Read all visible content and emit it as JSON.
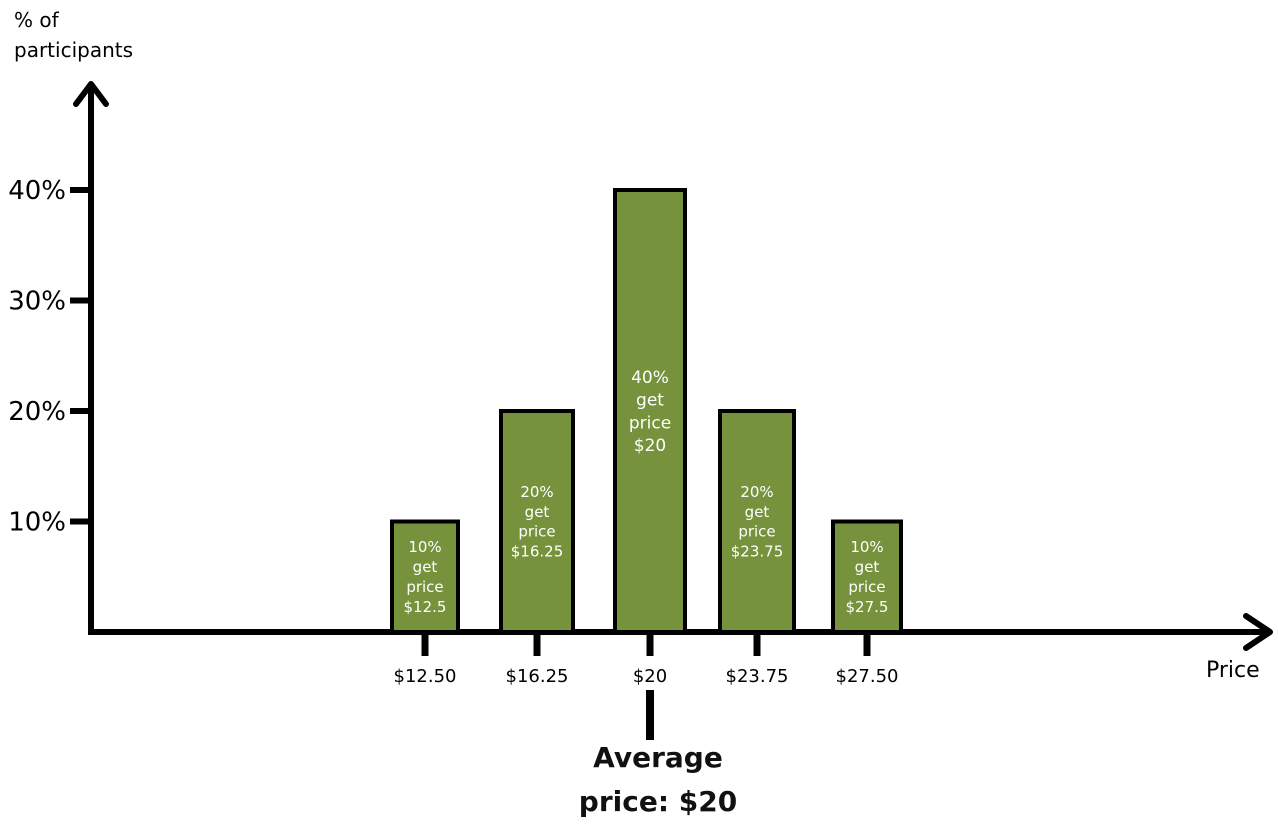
{
  "chart_data": {
    "type": "bar",
    "ylabel": [
      "% of",
      "participants"
    ],
    "xlabel": "Price",
    "yticks": [
      "10%",
      "20%",
      "30%",
      "40%"
    ],
    "ytick_values": [
      10,
      20,
      30,
      40
    ],
    "ylim": [
      0,
      50
    ],
    "categories": [
      "$12.50",
      "$16.25",
      "$20",
      "$23.75",
      "$27.50"
    ],
    "values": [
      10,
      20,
      40,
      20,
      10
    ],
    "bar_labels": [
      [
        "10%",
        "get",
        "price",
        "$12.5"
      ],
      [
        "20%",
        "get",
        "price",
        "$16.25"
      ],
      [
        "40%",
        "get",
        "price",
        "$20"
      ],
      [
        "20%",
        "get",
        "price",
        "$23.75"
      ],
      [
        "10%",
        "get",
        "price",
        "$27.5"
      ]
    ],
    "annotation": {
      "lines": [
        "Average",
        "price:  $20"
      ],
      "at_category": "$20"
    },
    "bar_color": "#76923c",
    "grid": false
  }
}
